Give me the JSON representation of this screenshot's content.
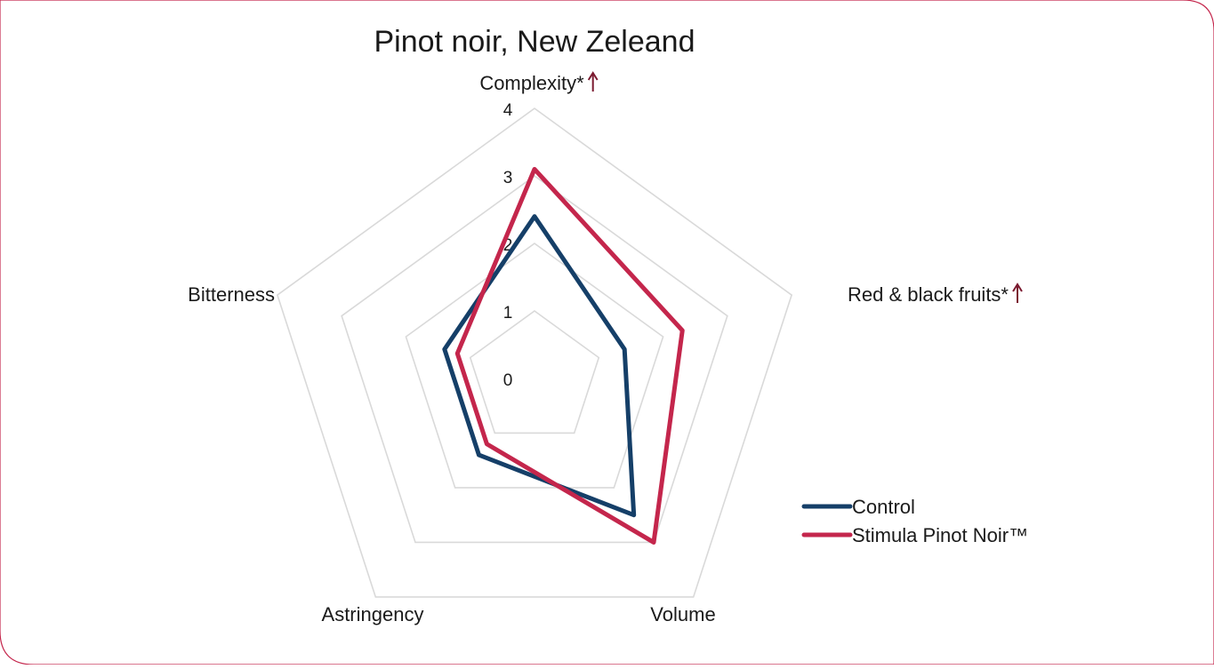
{
  "chart_data": {
    "type": "radar",
    "title": "Pinot noir, New Zeleand",
    "axes": [
      {
        "label": "Complexity*",
        "significant_increase": true
      },
      {
        "label": "Red & black fruits*",
        "significant_increase": true
      },
      {
        "label": "Volume",
        "significant_increase": false
      },
      {
        "label": "Astringency",
        "significant_increase": false
      },
      {
        "label": "Bitterness",
        "significant_increase": false
      }
    ],
    "scale": {
      "min": 0,
      "max": 4,
      "ticks": [
        "0",
        "1",
        "2",
        "3",
        "4"
      ]
    },
    "grid": true,
    "legend_position": "right",
    "series": [
      {
        "name": "Control",
        "color": "#153f68",
        "values": [
          2.4,
          1.4,
          2.5,
          1.4,
          1.4
        ]
      },
      {
        "name": "Stimula Pinot Noir™",
        "color": "#c4264c",
        "values": [
          3.1,
          2.3,
          3.0,
          1.2,
          1.2
        ]
      }
    ],
    "colors": {
      "grid": "#d9d9d9",
      "frame": "#c4264c",
      "arrow": "#7b1a30"
    }
  }
}
